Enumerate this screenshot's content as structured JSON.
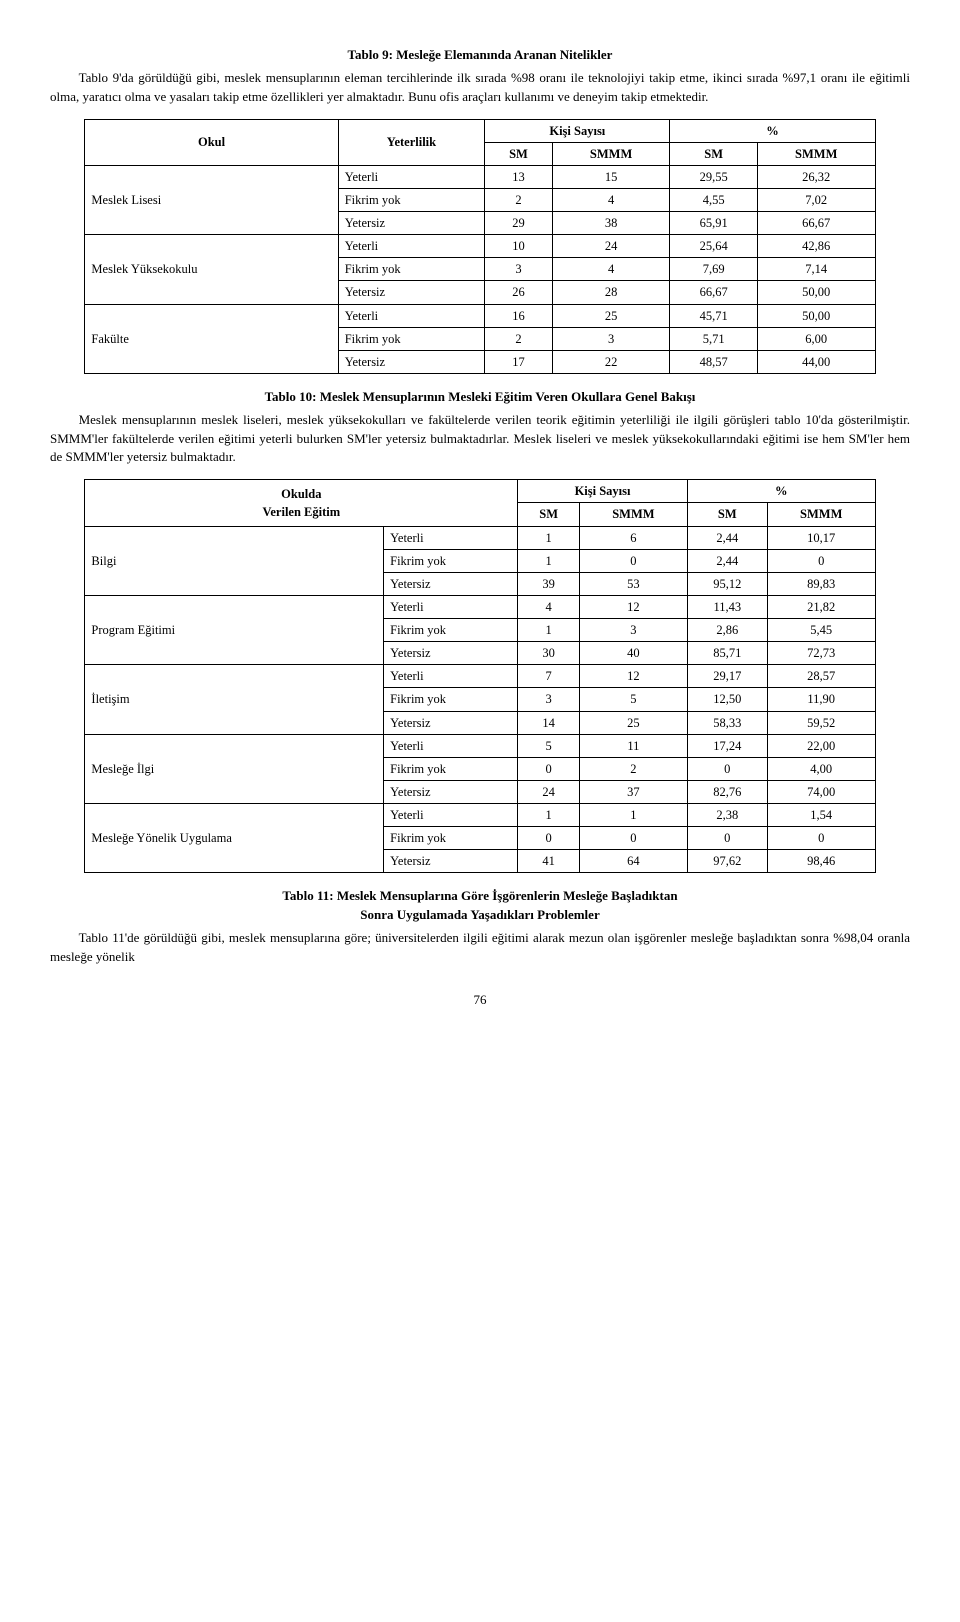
{
  "heading1": "Tablo 9: Mesleğe Elemanında Aranan Nitelikler",
  "para1": "Tablo 9'da görüldüğü gibi, meslek mensuplarının eleman tercihlerinde ilk sırada %98 oranı ile teknolojiyi takip etme, ikinci sırada %97,1 oranı ile eğitimli olma, yaratıcı olma ve yasaları takip etme özellikleri yer almaktadır. Bunu ofis araçları kullanımı ve deneyim takip etmektedir.",
  "table1": {
    "hdr_okul": "Okul",
    "hdr_yeterlilik": "Yeterlilik",
    "hdr_kisi": "Kişi Sayısı",
    "hdr_pct": "%",
    "hdr_sm": "SM",
    "hdr_smmm": "SMMM",
    "groups": [
      {
        "name": "Meslek Lisesi",
        "rows": [
          {
            "y": "Yeterli",
            "a": "13",
            "b": "15",
            "c": "29,55",
            "d": "26,32"
          },
          {
            "y": "Fikrim yok",
            "a": "2",
            "b": "4",
            "c": "4,55",
            "d": "7,02"
          },
          {
            "y": "Yetersiz",
            "a": "29",
            "b": "38",
            "c": "65,91",
            "d": "66,67"
          }
        ]
      },
      {
        "name": "Meslek Yüksekokulu",
        "rows": [
          {
            "y": "Yeterli",
            "a": "10",
            "b": "24",
            "c": "25,64",
            "d": "42,86"
          },
          {
            "y": "Fikrim yok",
            "a": "3",
            "b": "4",
            "c": "7,69",
            "d": "7,14"
          },
          {
            "y": "Yetersiz",
            "a": "26",
            "b": "28",
            "c": "66,67",
            "d": "50,00"
          }
        ]
      },
      {
        "name": "Fakülte",
        "rows": [
          {
            "y": "Yeterli",
            "a": "16",
            "b": "25",
            "c": "45,71",
            "d": "50,00"
          },
          {
            "y": "Fikrim yok",
            "a": "2",
            "b": "3",
            "c": "5,71",
            "d": "6,00"
          },
          {
            "y": "Yetersiz",
            "a": "17",
            "b": "22",
            "c": "48,57",
            "d": "44,00"
          }
        ]
      }
    ]
  },
  "heading2": "Tablo 10: Meslek Mensuplarının Mesleki Eğitim Veren Okullara Genel Bakışı",
  "para2": "Meslek mensuplarının meslek liseleri, meslek yüksekokulları ve fakültelerde verilen teorik eğitimin yeterliliği ile ilgili görüşleri tablo 10'da gösterilmiştir. SMMM'ler fakültelerde verilen eğitimi yeterli bulurken SM'ler yetersiz bulmaktadırlar. Meslek liseleri ve meslek yüksekokullarındaki eğitimi ise hem SM'ler hem de SMMM'ler yetersiz bulmaktadır.",
  "table2": {
    "hdr_col1a": "Okulda",
    "hdr_col1b": "Verilen Eğitim",
    "hdr_kisi": "Kişi Sayısı",
    "hdr_pct": "%",
    "hdr_sm": "SM",
    "hdr_smmm": "SMMM",
    "groups": [
      {
        "name": "Bilgi",
        "rows": [
          {
            "y": "Yeterli",
            "a": "1",
            "b": "6",
            "c": "2,44",
            "d": "10,17"
          },
          {
            "y": "Fikrim yok",
            "a": "1",
            "b": "0",
            "c": "2,44",
            "d": "0"
          },
          {
            "y": "Yetersiz",
            "a": "39",
            "b": "53",
            "c": "95,12",
            "d": "89,83"
          }
        ]
      },
      {
        "name": "Program Eğitimi",
        "rows": [
          {
            "y": "Yeterli",
            "a": "4",
            "b": "12",
            "c": "11,43",
            "d": "21,82"
          },
          {
            "y": "Fikrim yok",
            "a": "1",
            "b": "3",
            "c": "2,86",
            "d": "5,45"
          },
          {
            "y": "Yetersiz",
            "a": "30",
            "b": "40",
            "c": "85,71",
            "d": "72,73"
          }
        ]
      },
      {
        "name": "İletişim",
        "rows": [
          {
            "y": "Yeterli",
            "a": "7",
            "b": "12",
            "c": "29,17",
            "d": "28,57"
          },
          {
            "y": "Fikrim yok",
            "a": "3",
            "b": "5",
            "c": "12,50",
            "d": "11,90"
          },
          {
            "y": "Yetersiz",
            "a": "14",
            "b": "25",
            "c": "58,33",
            "d": "59,52"
          }
        ]
      },
      {
        "name": "Mesleğe İlgi",
        "rows": [
          {
            "y": "Yeterli",
            "a": "5",
            "b": "11",
            "c": "17,24",
            "d": "22,00"
          },
          {
            "y": "Fikrim yok",
            "a": "0",
            "b": "2",
            "c": "0",
            "d": "4,00"
          },
          {
            "y": "Yetersiz",
            "a": "24",
            "b": "37",
            "c": "82,76",
            "d": "74,00"
          }
        ]
      },
      {
        "name": "Mesleğe Yönelik Uygulama",
        "rows": [
          {
            "y": "Yeterli",
            "a": "1",
            "b": "1",
            "c": "2,38",
            "d": "1,54"
          },
          {
            "y": "Fikrim yok",
            "a": "0",
            "b": "0",
            "c": "0",
            "d": "0"
          },
          {
            "y": "Yetersiz",
            "a": "41",
            "b": "64",
            "c": "97,62",
            "d": "98,46"
          }
        ]
      }
    ]
  },
  "heading3a": "Tablo 11: Meslek Mensuplarına Göre İşgörenlerin Mesleğe Başladıktan",
  "heading3b": "Sonra Uygulamada Yaşadıkları Problemler",
  "para3": "Tablo 11'de görüldüğü gibi, meslek mensuplarına göre; üniversitelerden ilgili eğitimi alarak mezun olan işgörenler mesleğe başladıktan sonra %98,04 oranla mesleğe yönelik",
  "pagenum": "76"
}
